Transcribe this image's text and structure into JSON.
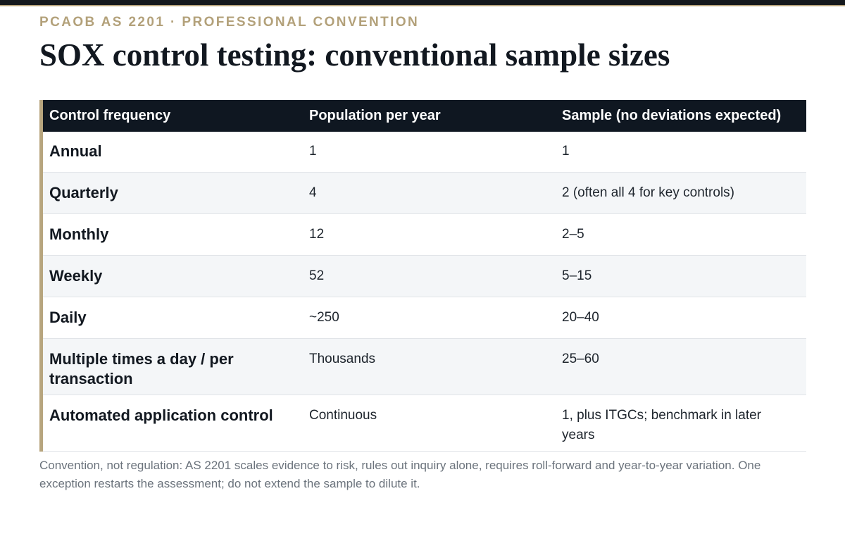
{
  "eyebrow": "PCAOB AS 2201 · PROFESSIONAL CONVENTION",
  "title": "SOX control testing: conventional sample sizes",
  "table": {
    "headers": [
      "Control frequency",
      "Population per year",
      "Sample (no deviations expected)"
    ],
    "rows": [
      {
        "frequency": "Annual",
        "population": "1",
        "sample": "1"
      },
      {
        "frequency": "Quarterly",
        "population": "4",
        "sample": "2 (often all 4 for key controls)"
      },
      {
        "frequency": "Monthly",
        "population": "12",
        "sample": "2–5"
      },
      {
        "frequency": "Weekly",
        "population": "52",
        "sample": "5–15"
      },
      {
        "frequency": "Daily",
        "population": "~250",
        "sample": "20–40"
      },
      {
        "frequency": "Multiple times a day / per transaction",
        "population": "Thousands",
        "sample": "25–60"
      },
      {
        "frequency": "Automated application control",
        "population": "Continuous",
        "sample": "1, plus ITGCs; benchmark in later years"
      }
    ]
  },
  "note": "Convention, not regulation: AS 2201 scales evidence to risk, rules out inquiry alone, requires roll-forward and year-to-year variation. One exception restarts the assessment; do not extend the sample to dilute it."
}
